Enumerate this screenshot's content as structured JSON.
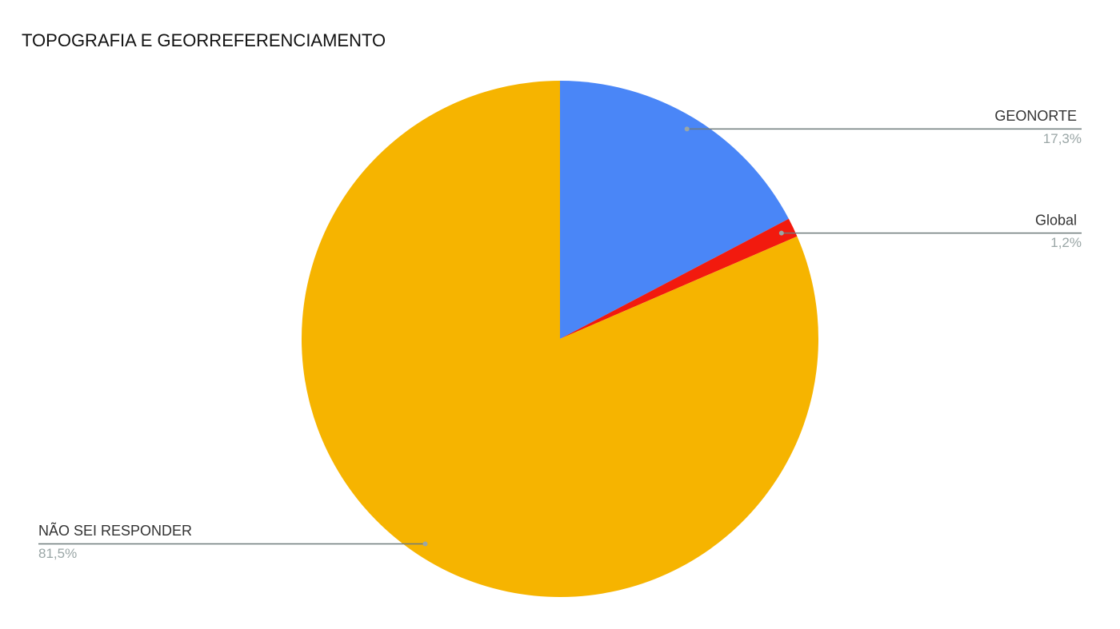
{
  "chart_data": {
    "type": "pie",
    "title": "TOPOGRAFIA E GEORREFERENCIAMENTO",
    "categories": [
      "GEONORTE",
      "Global",
      "NÃO SEI RESPONDER"
    ],
    "values": [
      17.3,
      1.2,
      81.5
    ],
    "value_labels": [
      "17,3%",
      "1,2%",
      "81,5%"
    ],
    "colors": [
      "#4a86f7",
      "#f21a0e",
      "#f6b400"
    ]
  }
}
